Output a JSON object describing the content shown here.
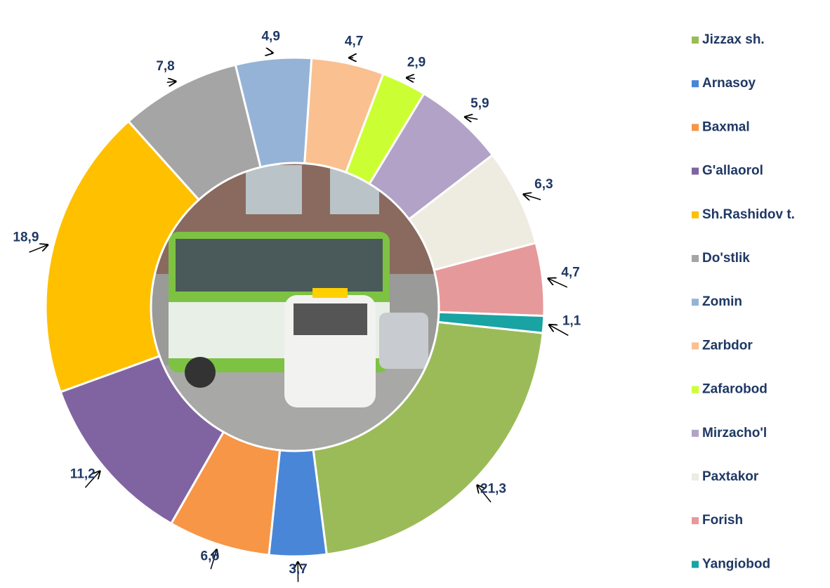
{
  "chart_data": {
    "type": "donut",
    "categories": [
      "Jizzax sh.",
      "Arnasoy",
      "Baxmal",
      "G'allaorol",
      "Sh.Rashidov t.",
      "Do'stlik",
      "Zomin",
      "Zarbdor",
      "Zafarobod",
      "Mirzacho'l",
      "Paxtakor",
      "Forish",
      "Yangiobod"
    ],
    "values": [
      21.3,
      3.7,
      6.6,
      11.2,
      18.9,
      7.8,
      4.9,
      4.7,
      2.9,
      5.9,
      6.3,
      4.7,
      1.1
    ],
    "value_labels": [
      "21,3",
      "3,7",
      "6,6",
      "11,2",
      "18,9",
      "7,8",
      "4,9",
      "4,7",
      "2,9",
      "5,9",
      "6,3",
      "4,7",
      "1,1"
    ],
    "colors": [
      "#9bbb59",
      "#4a86d8",
      "#f79646",
      "#8064a2",
      "#ffc000",
      "#a5a5a5",
      "#95b3d7",
      "#fac090",
      "#ccff33",
      "#b3a2c7",
      "#eeece1",
      "#e6999a",
      "#1aa3a3"
    ],
    "legend": "right"
  }
}
